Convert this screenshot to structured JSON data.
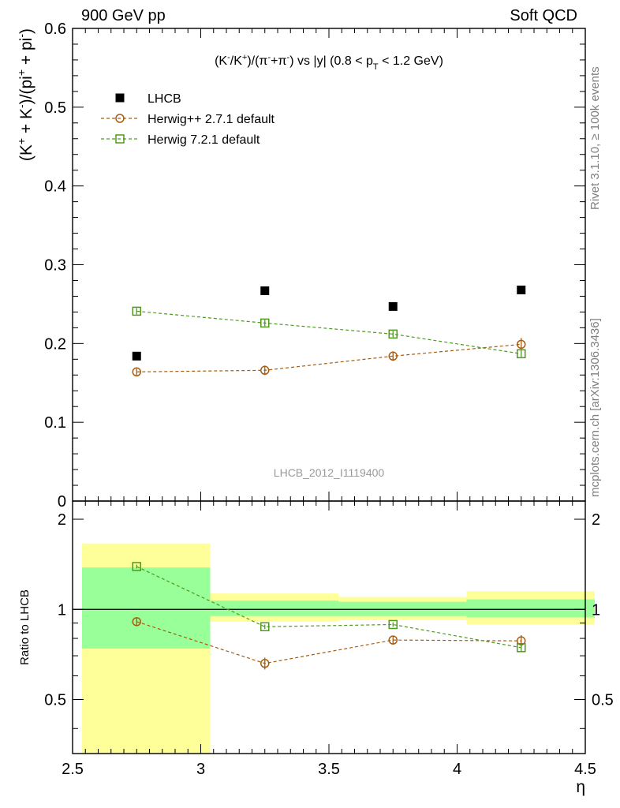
{
  "header": {
    "left": "900 GeV pp",
    "right": "Soft QCD"
  },
  "side_labels": {
    "top": "Rivet 3.1.10, ≥ 100k events",
    "bottom": "mcplots.cern.ch [arXiv:1306.3436]"
  },
  "plot": {
    "watermark": "LHCB_2012_I1119400",
    "title_parts": [
      "(K",
      "-",
      "/K",
      "+",
      ")/(π",
      "-",
      "+π",
      "-",
      ") vs |y| (0.8 < p",
      "T",
      " < 1.2 GeV)"
    ]
  },
  "legend": [
    {
      "label": "LHCB",
      "marker": "filled-square",
      "color": "#000000"
    },
    {
      "label": "Herwig++ 2.7.1 default",
      "marker": "open-circle",
      "color": "#a65c11"
    },
    {
      "label": "Herwig 7.2.1 default",
      "marker": "open-square",
      "color": "#4d9a1c"
    }
  ],
  "chart_data": [
    {
      "type": "scatter",
      "ylabel_parts": [
        "(K",
        "+",
        " + K",
        "-",
        ")/(pi",
        "+",
        " + pi",
        "-",
        ")"
      ],
      "xlim": [
        2.5,
        4.5
      ],
      "ylim": [
        0,
        0.6
      ],
      "yticks": [
        0,
        0.1,
        0.2,
        0.3,
        0.4,
        0.5,
        0.6
      ],
      "ytick_labels": [
        "0",
        "0.1",
        "0.2",
        "0.3",
        "0.4",
        "0.5",
        "0.6"
      ],
      "x": [
        2.75,
        3.25,
        3.75,
        4.25
      ],
      "series": [
        {
          "name": "LHCB",
          "values": [
            0.184,
            0.267,
            0.247,
            0.268
          ]
        },
        {
          "name": "Herwig++ 2.7.1 default",
          "values": [
            0.164,
            0.166,
            0.184,
            0.199
          ],
          "errors": [
            0.004,
            0.006,
            0.006,
            0.008
          ]
        },
        {
          "name": "Herwig 7.2.1 default",
          "values": [
            0.241,
            0.226,
            0.212,
            0.187
          ],
          "errors": [
            0.004,
            0.004,
            0.004,
            0.004
          ]
        }
      ]
    },
    {
      "type": "scatter",
      "ylabel": "Ratio to LHCB",
      "xlabel": "η",
      "xlim": [
        2.5,
        4.5
      ],
      "ylim": [
        0.33,
        2.3
      ],
      "log_y": true,
      "xticks": [
        2.5,
        3,
        3.5,
        4,
        4.5
      ],
      "xtick_labels": [
        "2.5",
        "3",
        "3.5",
        "4",
        "4.5"
      ],
      "yticks": [
        0.5,
        1,
        2
      ],
      "ytick_labels": [
        "0.5",
        "1",
        "2"
      ],
      "bands": [
        {
          "x": [
            2.5,
            3.0
          ],
          "stat": [
            0.74,
            1.38
          ],
          "total": [
            0.33,
            1.66
          ]
        },
        {
          "x": [
            3.0,
            3.5
          ],
          "stat": [
            0.95,
            1.07
          ],
          "total": [
            0.91,
            1.13
          ]
        },
        {
          "x": [
            3.5,
            4.0
          ],
          "stat": [
            0.95,
            1.06
          ],
          "total": [
            0.92,
            1.1
          ]
        },
        {
          "x": [
            4.0,
            4.5
          ],
          "stat": [
            0.94,
            1.08
          ],
          "total": [
            0.89,
            1.15
          ]
        }
      ],
      "x": [
        2.75,
        3.25,
        3.75,
        4.25
      ],
      "series": [
        {
          "name": "Herwig++ 2.7.1 default",
          "values": [
            0.91,
            0.66,
            0.79,
            0.785
          ],
          "errors": [
            0.025,
            0.03,
            0.025,
            0.035
          ]
        },
        {
          "name": "Herwig 7.2.1 default",
          "values": [
            1.39,
            0.875,
            0.89,
            0.745
          ],
          "errors": [
            0.02,
            0.015,
            0.015,
            0.025
          ]
        }
      ]
    }
  ],
  "colors": {
    "band_total": "#ffff99",
    "band_stat": "#99ff99",
    "herwig_pp": "#a65c11",
    "herwig7": "#4d9a1c",
    "data": "#000000"
  }
}
